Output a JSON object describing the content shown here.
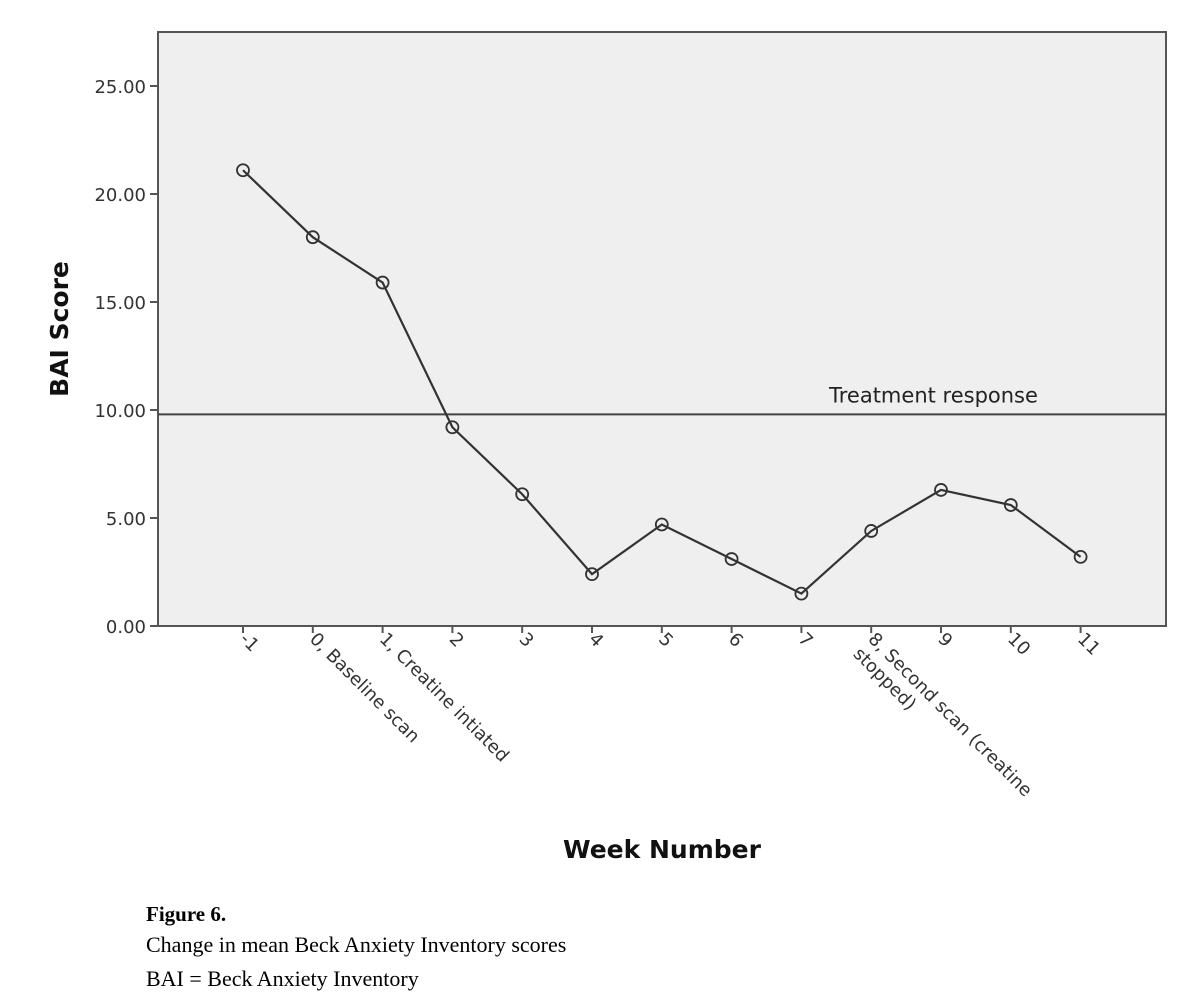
{
  "chart_data": {
    "type": "line",
    "xlabel": "Week Number",
    "ylabel": "BAI Score",
    "ylim": [
      0,
      27.5
    ],
    "yticks": [
      "0.00",
      "5.00",
      "10.00",
      "15.00",
      "20.00",
      "25.00"
    ],
    "ytick_values": [
      0,
      5,
      10,
      15,
      20,
      25
    ],
    "categories": [
      "-1",
      "0, Baseline scan",
      "1, Creatine intiated",
      "2",
      "3",
      "4",
      "5",
      "6",
      "7",
      "8, Second scan (creatine stopped)",
      "9",
      "10",
      "11"
    ],
    "category_label_lines": [
      [
        "-1"
      ],
      [
        "0, Baseline scan"
      ],
      [
        "1, Creatine intiated"
      ],
      [
        "2"
      ],
      [
        "3"
      ],
      [
        "4"
      ],
      [
        "5"
      ],
      [
        "6"
      ],
      [
        "7"
      ],
      [
        "8, Second scan (creatine",
        "stopped)"
      ],
      [
        "9"
      ],
      [
        "10"
      ],
      [
        "11"
      ]
    ],
    "values": [
      21.1,
      18.0,
      15.9,
      9.2,
      6.1,
      2.4,
      4.7,
      3.1,
      1.5,
      4.4,
      6.3,
      5.6,
      3.2
    ],
    "reference_line": {
      "value": 9.8,
      "label": "Treatment response"
    },
    "grid": false,
    "background": "#efefef",
    "line_color": "#333333"
  },
  "caption": {
    "title": "Figure 6.",
    "line1": "Change in mean Beck Anxiety Inventory scores",
    "line2": "BAI = Beck Anxiety Inventory"
  }
}
